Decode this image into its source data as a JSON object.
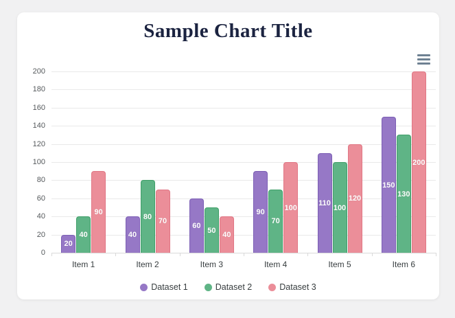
{
  "page": {
    "background": "#f1f1f2",
    "card_background": "#ffffff"
  },
  "toolbar": {
    "menu_icon": "hamburger-menu-icon",
    "menu_icon_color": "#6E8192"
  },
  "chart_data": {
    "type": "bar",
    "title": "Sample Chart Title",
    "title_color": "#1b2340",
    "categories": [
      "Item 1",
      "Item 2",
      "Item 3",
      "Item 4",
      "Item 5",
      "Item 6"
    ],
    "series": [
      {
        "name": "Dataset 1",
        "values": [
          20,
          40,
          60,
          90,
          110,
          150
        ],
        "fill": "#9678C6",
        "border": "#7B5EB4"
      },
      {
        "name": "Dataset 2",
        "values": [
          40,
          80,
          50,
          70,
          100,
          130
        ],
        "fill": "#5FB486",
        "border": "#3E9E68"
      },
      {
        "name": "Dataset 3",
        "values": [
          90,
          70,
          40,
          100,
          120,
          200
        ],
        "fill": "#EB8E99",
        "border": "#E07684"
      }
    ],
    "data_labels": true,
    "data_label_color": "#ffffff",
    "xlabel": "",
    "ylabel": "",
    "ylim": [
      0,
      200
    ],
    "ytick_step": 20,
    "yticks": [
      0,
      20,
      40,
      60,
      80,
      100,
      120,
      140,
      160,
      180,
      200
    ],
    "grid": true,
    "grid_color": "#e9e9e9",
    "legend_position": "bottom"
  }
}
